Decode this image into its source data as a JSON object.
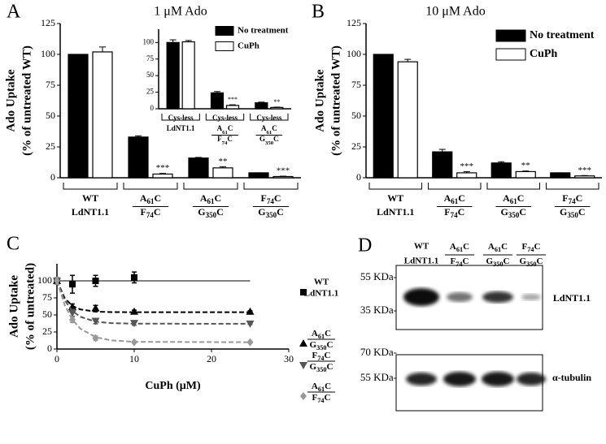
{
  "chart_data": [
    {
      "type": "bar",
      "letter": "A",
      "title": "1 μM Ado",
      "ylabel": [
        "Ado Uptake",
        "(% of untreated WT)"
      ],
      "categories": [
        [
          "WT",
          "LdNT1.1"
        ],
        [
          "A61C",
          "F74C"
        ],
        [
          "A61C",
          "G350C"
        ],
        [
          "F74C",
          "G350C"
        ]
      ],
      "series": [
        {
          "color": "#000000",
          "values": [
            100,
            33,
            16,
            4
          ],
          "errors": [
            0,
            1,
            0.5,
            0
          ]
        },
        {
          "color": "#ffffff",
          "values": [
            102,
            3,
            8,
            1
          ],
          "errors": [
            4,
            0.5,
            1,
            0.3
          ],
          "significance": [
            null,
            "***",
            "**",
            "***"
          ]
        }
      ],
      "ylim": [
        0,
        125
      ],
      "yticks": [
        0,
        25,
        50,
        75,
        100,
        125
      ]
    },
    {
      "type": "bar",
      "categories": [
        [
          "Cys-less",
          "LdNT1.1"
        ],
        [
          "Cys-less",
          "A61C",
          "F74C"
        ],
        [
          "Cys-less",
          "A61C",
          "G350C"
        ]
      ],
      "series": [
        {
          "name": "No treatment",
          "color": "#000000",
          "values": [
            100,
            24,
            9
          ],
          "errors": [
            4,
            2,
            1
          ]
        },
        {
          "name": "CuPh",
          "color": "#ffffff",
          "values": [
            101,
            5,
            2
          ],
          "errors": [
            2,
            1,
            0.5
          ],
          "significance": [
            null,
            "***",
            "**"
          ]
        }
      ],
      "ylim": [
        0,
        120
      ],
      "yticks": [
        0,
        25,
        50,
        75,
        100
      ]
    },
    {
      "type": "bar",
      "letter": "B",
      "title": "10 μM Ado",
      "ylabel": [
        "Ado Uptake",
        "(% of untreated WT)"
      ],
      "categories": [
        [
          "WT",
          "LdNT1.1"
        ],
        [
          "A61C",
          "F74C"
        ],
        [
          "A61C",
          "G350C"
        ],
        [
          "F74C",
          "G350C"
        ]
      ],
      "series": [
        {
          "name": "No treatment",
          "color": "#000000",
          "values": [
            100,
            21,
            12,
            4
          ],
          "errors": [
            0,
            2,
            1,
            0
          ]
        },
        {
          "name": "CuPh",
          "color": "#ffffff",
          "values": [
            94,
            4,
            5,
            1.5
          ],
          "errors": [
            2,
            1,
            0.5,
            0.3
          ],
          "significance": [
            null,
            "***",
            "**",
            "***"
          ]
        }
      ],
      "ylim": [
        0,
        125
      ],
      "yticks": [
        0,
        25,
        50,
        75,
        100,
        125
      ]
    },
    {
      "type": "line",
      "letter": "C",
      "xlabel": "CuPh (μM)",
      "ylabel": [
        "Ado Uptake",
        "(% of untreated)"
      ],
      "xlim": [
        0,
        30
      ],
      "xticks": [
        0,
        10,
        20,
        30
      ],
      "ylim": [
        0,
        125
      ],
      "yticks": [
        0,
        25,
        50,
        75,
        100
      ],
      "series": [
        {
          "name": [
            "WT",
            "LdNT1.1"
          ],
          "color": "#000000",
          "marker": "square",
          "dash": "solid",
          "x": [
            0,
            2,
            5,
            10
          ],
          "values": [
            100,
            95,
            100,
            105
          ],
          "errors": [
            5,
            13,
            8,
            8
          ],
          "fit": {
            "x": [
              0,
              25
            ],
            "values": [
              100,
              100
            ]
          }
        },
        {
          "name": [
            "A61C",
            "G350C"
          ],
          "color": "#000000",
          "marker": "triangle-up",
          "dash": "dashed",
          "x": [
            0,
            2,
            5,
            10,
            25
          ],
          "values": [
            100,
            62,
            60,
            55,
            55
          ],
          "errors": [
            5,
            4,
            4,
            2,
            1
          ],
          "fit": {
            "x": [
              0,
              1,
              2,
              3,
              5,
              7,
              10,
              25
            ],
            "values": [
              100,
              74.7,
              63.3,
              58.2,
              54.8,
              54.2,
              54,
              54
            ]
          }
        },
        {
          "name": [
            "F74C",
            "G350C"
          ],
          "color": "#555555",
          "marker": "triangle-down",
          "dash": "dashed",
          "x": [
            0,
            2,
            5,
            10,
            25
          ],
          "values": [
            100,
            53,
            41,
            38,
            37
          ],
          "errors": [
            5,
            5,
            4,
            3,
            1
          ],
          "fit": {
            "x": [
              0,
              1,
              2,
              3,
              5,
              7,
              10,
              25
            ],
            "values": [
              100,
              71.6,
              55.9,
              47.4,
              40.1,
              38,
              37.2,
              37
            ]
          }
        },
        {
          "name": [
            "A61C",
            "F74C"
          ],
          "color": "#999999",
          "marker": "diamond",
          "dash": "dashed",
          "x": [
            0,
            2,
            5,
            10,
            25
          ],
          "values": [
            100,
            43,
            16,
            10,
            10
          ],
          "errors": [
            5,
            4,
            3,
            1,
            1
          ],
          "fit": {
            "x": [
              0,
              1,
              2,
              3,
              5,
              7,
              10,
              25
            ],
            "values": [
              100,
              64.6,
              43.1,
              30.1,
              17.4,
              12.7,
              10.6,
              10
            ]
          }
        }
      ]
    }
  ],
  "blot": {
    "letter": "D",
    "lanes": [
      [
        "WT",
        "LdNT1.1"
      ],
      [
        "A61C",
        "F74C"
      ],
      [
        "A61C",
        "G350C"
      ],
      [
        "F74C",
        "G350C"
      ]
    ],
    "panels": [
      {
        "name": "LdNT1.1",
        "markers": [
          "55 KDa-",
          "35 KDa-"
        ]
      },
      {
        "name": "α-tubulin",
        "markers": [
          "70 KDa-",
          "55 KDa-"
        ]
      }
    ]
  }
}
